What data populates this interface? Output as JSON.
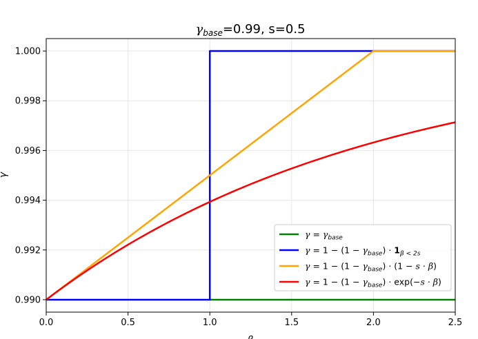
{
  "chart_data": {
    "type": "line",
    "title_main": "γ",
    "title_sub": "base",
    "title_rest": "=0.99, s=0.5",
    "xlabel": "β",
    "ylabel": "γ",
    "xlim": [
      0.0,
      2.5
    ],
    "ylim": [
      0.9895,
      1.0005
    ],
    "grid": true,
    "legend_position": "lower-right",
    "x_ticks": [
      0.0,
      0.5,
      1.0,
      1.5,
      2.0,
      2.5
    ],
    "x_tick_labels": [
      "0.0",
      "0.5",
      "1.0",
      "1.5",
      "2.0",
      "2.5"
    ],
    "y_ticks": [
      0.99,
      0.992,
      0.994,
      0.996,
      0.998,
      1.0
    ],
    "y_tick_labels": [
      "0.990",
      "0.992",
      "0.994",
      "0.996",
      "0.998",
      "1.000"
    ],
    "series": [
      {
        "key": "constant",
        "color": "#008000",
        "legend_parts": [
          [
            "it",
            "γ"
          ],
          [
            "",
            " = "
          ],
          [
            "it",
            "γ"
          ],
          [
            "sub",
            "base"
          ]
        ],
        "x": [
          1.0,
          2.5
        ],
        "y": [
          0.99,
          0.99
        ]
      },
      {
        "key": "step",
        "color": "#0000ff",
        "legend_parts": [
          [
            "it",
            "γ"
          ],
          [
            "",
            " = 1 − (1 − "
          ],
          [
            "it",
            "γ"
          ],
          [
            "sub",
            "base"
          ],
          [
            "",
            ") · "
          ],
          [
            "bold",
            "1"
          ],
          [
            "sub",
            "β < 2s"
          ]
        ],
        "x": [
          0.0,
          1.0,
          1.0,
          2.5
        ],
        "y": [
          0.99,
          0.99,
          1.0,
          1.0
        ]
      },
      {
        "key": "linear",
        "color": "#ffa500",
        "legend_parts": [
          [
            "it",
            "γ"
          ],
          [
            "",
            " = 1 − (1 − "
          ],
          [
            "it",
            "γ"
          ],
          [
            "sub",
            "base"
          ],
          [
            "",
            ") · (1 − "
          ],
          [
            "it",
            "s"
          ],
          [
            "",
            " · "
          ],
          [
            "it",
            "β"
          ],
          [
            "",
            ")"
          ]
        ],
        "x": [
          0.0,
          0.5,
          1.0,
          1.5,
          2.0,
          2.5
        ],
        "y": [
          0.99,
          0.9925,
          0.995,
          0.9975,
          1.0,
          1.0
        ]
      },
      {
        "key": "exponential",
        "color": "#ff0000",
        "legend_parts": [
          [
            "it",
            "γ"
          ],
          [
            "",
            " = 1 − (1 − "
          ],
          [
            "it",
            "γ"
          ],
          [
            "sub",
            "base"
          ],
          [
            "",
            ") · exp(−"
          ],
          [
            "it",
            "s"
          ],
          [
            "",
            " · "
          ],
          [
            "it",
            "β"
          ],
          [
            "",
            ")"
          ]
        ],
        "x": [
          0.0,
          0.25,
          0.5,
          0.75,
          1.0,
          1.25,
          1.5,
          1.75,
          2.0,
          2.25,
          2.5
        ],
        "y": [
          0.99,
          0.99118,
          0.99221,
          0.99313,
          0.99393,
          0.99465,
          0.99528,
          0.99583,
          0.99632,
          0.99675,
          0.99713
        ]
      }
    ]
  }
}
